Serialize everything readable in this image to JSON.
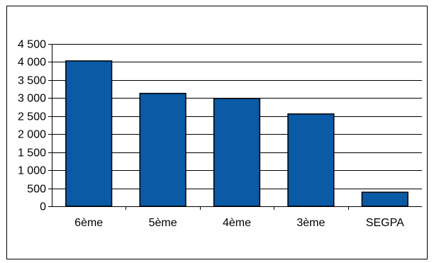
{
  "colors": {
    "bar_fill": "#0a5aa5",
    "bar_stroke": "#000000",
    "grid": "#000000",
    "background": "#ffffff"
  },
  "chart_data": {
    "type": "bar",
    "title": "",
    "xlabel": "",
    "ylabel": "",
    "categories": [
      "6ème",
      "5ème",
      "4ème",
      "3ème",
      "SEGPA"
    ],
    "values": [
      4030,
      3130,
      2990,
      2560,
      390
    ],
    "ylim": [
      0,
      4500
    ],
    "y_ticks": [
      0,
      500,
      1000,
      1500,
      2000,
      2500,
      3000,
      3500,
      4000,
      4500
    ],
    "y_tick_labels": [
      "0",
      "500",
      "1 000",
      "1 500",
      "2 000",
      "2 500",
      "3 000",
      "3 500",
      "4 000",
      "4 500"
    ],
    "grid": true,
    "legend": "none"
  }
}
